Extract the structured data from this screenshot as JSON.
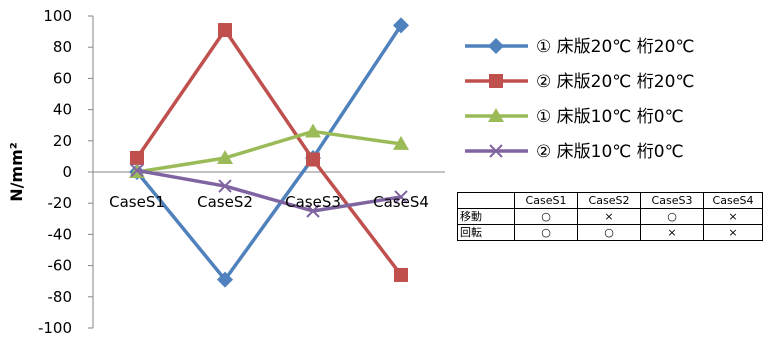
{
  "chart_data": {
    "type": "line",
    "categories": [
      "CaseS1",
      "CaseS2",
      "CaseS3",
      "CaseS4"
    ],
    "ylabel": "N/mm²",
    "ylim": [
      -100,
      100
    ],
    "yticks": [
      100,
      80,
      60,
      40,
      20,
      0,
      -20,
      -40,
      -60,
      -80,
      -100
    ],
    "grid": false,
    "legend_position": "right",
    "series": [
      {
        "name": "① 床版20℃ 桁20℃",
        "values": [
          0,
          -69,
          9,
          94
        ],
        "color": "#4F81BD",
        "marker": "diamond"
      },
      {
        "name": "② 床版20℃ 桁20℃",
        "values": [
          9,
          91,
          8,
          -66
        ],
        "color": "#C0504D",
        "marker": "square"
      },
      {
        "name": "① 床版10℃ 桁0℃",
        "values": [
          0,
          9,
          26,
          18
        ],
        "color": "#9BBB59",
        "marker": "triangle"
      },
      {
        "name": "② 床版10℃ 桁0℃",
        "values": [
          1,
          -9,
          -25,
          -16
        ],
        "color": "#8064A2",
        "marker": "x"
      }
    ]
  },
  "condition_table": {
    "header": [
      "",
      "CaseS1",
      "CaseS2",
      "CaseS3",
      "CaseS4"
    ],
    "rows": [
      {
        "label": "移動",
        "cells": [
          "○",
          "×",
          "○",
          "×"
        ]
      },
      {
        "label": "回転",
        "cells": [
          "○",
          "○",
          "×",
          "×"
        ]
      }
    ]
  }
}
